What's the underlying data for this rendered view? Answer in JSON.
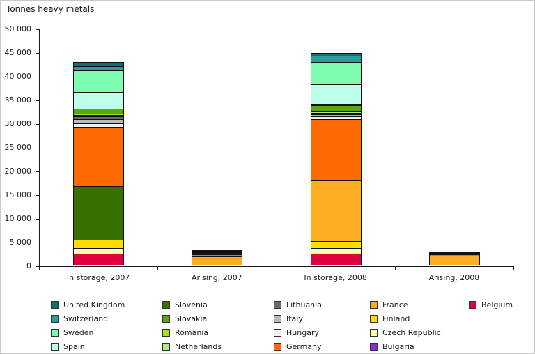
{
  "chart_data": {
    "type": "bar",
    "stacked": true,
    "title": "Tonnes heavy metals",
    "xlabel": "",
    "ylabel": "Tonnes heavy metals",
    "ylim": [
      0,
      50000
    ],
    "ytick_step": 5000,
    "grid": false,
    "legend_position": "bottom",
    "ytick_labels": [
      "0",
      "5 000",
      "10 000",
      "15 000",
      "20 000",
      "25 000",
      "30 000",
      "35 000",
      "40 000",
      "45 000",
      "50 000"
    ],
    "categories": [
      "In storage, 2007",
      "Arising, 2007",
      "In storage, 2008",
      "Arising, 2008"
    ],
    "colors": {
      "United Kingdom": "#106F6F",
      "Switzerland": "#2E9B9B",
      "Sweden": "#7DFBAF",
      "Spain": "#BDFFE8",
      "Slovenia": "#367000",
      "Slovakia": "#56A80E",
      "Romania": "#A9E511",
      "Netherlands": "#A9E98D",
      "Lithuania": "#6B6B6B",
      "Italy": "#BBBBBB",
      "Hungary": "#F0F0F0",
      "Germany": "#FD6A02",
      "France": "#FCAD23",
      "Finland": "#FFDC00",
      "Czech Republic": "#FEFDB0",
      "Bulgaria": "#8C2BDD",
      "Belgium": "#E00240"
    },
    "legend_columns": [
      [
        "United Kingdom",
        "Switzerland",
        "Sweden",
        "Spain"
      ],
      [
        "Slovenia",
        "Slovakia",
        "Romania",
        "Netherlands"
      ],
      [
        "Lithuania",
        "Italy",
        "Hungary",
        "Germany"
      ],
      [
        "France",
        "Finland",
        "Czech Republic",
        "Bulgaria"
      ],
      [
        "Belgium"
      ]
    ],
    "bars": [
      {
        "category": "In storage, 2007",
        "total": 42600,
        "segments": [
          {
            "country": "Belgium",
            "value": 2300
          },
          {
            "country": "Czech Republic",
            "value": 1200
          },
          {
            "country": "Finland",
            "value": 1800
          },
          {
            "country": "Slovenia",
            "value": 11300
          },
          {
            "country": "Germany",
            "value": 12500
          },
          {
            "country": "Hungary",
            "value": 700
          },
          {
            "country": "Italy",
            "value": 900
          },
          {
            "country": "Lithuania",
            "value": 600
          },
          {
            "country": "Netherlands",
            "value": 350
          },
          {
            "country": "Romania",
            "value": 250
          },
          {
            "country": "Slovakia",
            "value": 1000
          },
          {
            "country": "Spain",
            "value": 3650
          },
          {
            "country": "Sweden",
            "value": 4450
          },
          {
            "country": "Switzerland",
            "value": 900
          },
          {
            "country": "United Kingdom",
            "value": 700
          }
        ]
      },
      {
        "category": "Arising, 2007",
        "total": 2950,
        "segments": [
          {
            "country": "France",
            "value": 1750
          },
          {
            "country": "Germany",
            "value": 450
          },
          {
            "country": "Sweden",
            "value": 300
          },
          {
            "country": "Switzerland",
            "value": 200
          },
          {
            "country": "United Kingdom",
            "value": 250
          }
        ]
      },
      {
        "category": "In storage, 2008",
        "total": 44500,
        "segments": [
          {
            "country": "Belgium",
            "value": 2350
          },
          {
            "country": "Czech Republic",
            "value": 1200
          },
          {
            "country": "Finland",
            "value": 1500
          },
          {
            "country": "France",
            "value": 12700
          },
          {
            "country": "Germany",
            "value": 13000
          },
          {
            "country": "Hungary",
            "value": 500
          },
          {
            "country": "Italy",
            "value": 500
          },
          {
            "country": "Lithuania",
            "value": 300
          },
          {
            "country": "Netherlands",
            "value": 250
          },
          {
            "country": "Romania",
            "value": 200
          },
          {
            "country": "Slovakia",
            "value": 1200
          },
          {
            "country": "Slovenia",
            "value": 250
          },
          {
            "country": "Spain",
            "value": 4200
          },
          {
            "country": "Sweden",
            "value": 4650
          },
          {
            "country": "Switzerland",
            "value": 1300
          },
          {
            "country": "United Kingdom",
            "value": 400
          }
        ]
      },
      {
        "category": "Arising, 2008",
        "total": 2550,
        "segments": [
          {
            "country": "France",
            "value": 1900
          },
          {
            "country": "Germany",
            "value": 250
          },
          {
            "country": "Sweden",
            "value": 100
          },
          {
            "country": "Switzerland",
            "value": 100
          },
          {
            "country": "United Kingdom",
            "value": 200
          }
        ]
      }
    ]
  }
}
